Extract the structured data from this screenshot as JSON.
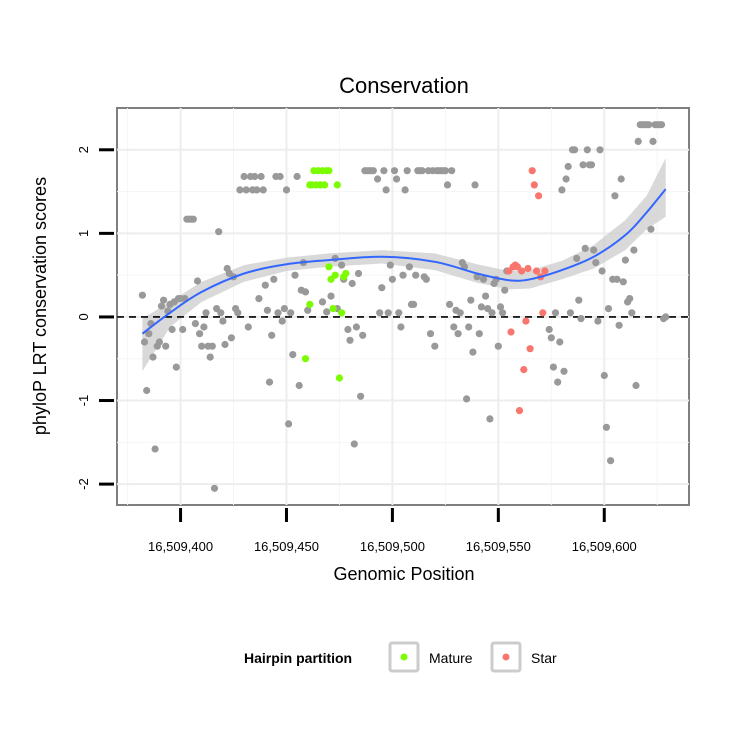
{
  "chart_data": {
    "type": "scatter",
    "title": "Conservation",
    "xlabel": "Genomic Position",
    "ylabel": "phyloP LRT conservation scores",
    "xlim": [
      16509370,
      16509640
    ],
    "ylim": [
      -2.25,
      2.5
    ],
    "x_ticks": [
      16509400,
      16509450,
      16509500,
      16509550,
      16509600
    ],
    "x_tick_labels": [
      "16,509,400",
      "16,509,450",
      "16,509,500",
      "16,509,550",
      "16,509,600"
    ],
    "y_ticks": [
      -2,
      -1,
      0,
      1,
      2
    ],
    "y_tick_labels": [
      "-2",
      "-1",
      "0",
      "1",
      "2"
    ],
    "grid": true,
    "reference_line": {
      "y": 0,
      "style": "dashed"
    },
    "legend": {
      "title": "Hairpin partition",
      "position": "bottom",
      "entries": [
        {
          "label": "Mature",
          "color": "#7CFC00"
        },
        {
          "label": "Star",
          "color": "#F8766D"
        }
      ]
    },
    "colors": {
      "unassigned": "#999999",
      "Mature": "#7CFC00",
      "Star": "#F8766D",
      "smooth_line": "#3366FF",
      "confidence_band": "#CCCCCC"
    },
    "series": [
      {
        "category": "unassigned",
        "points": [
          [
            16509382,
            0.26
          ],
          [
            16509383,
            -0.3
          ],
          [
            16509384,
            -0.88
          ],
          [
            16509385,
            -0.2
          ],
          [
            16509386,
            -0.08
          ],
          [
            16509387,
            -0.48
          ],
          [
            16509388,
            -1.58
          ],
          [
            16509389,
            -0.35
          ],
          [
            16509390,
            -0.3
          ],
          [
            16509391,
            0.13
          ],
          [
            16509392,
            0.2
          ],
          [
            16509393,
            -0.35
          ],
          [
            16509394,
            0.07
          ],
          [
            16509395,
            0.15
          ],
          [
            16509396,
            -0.15
          ],
          [
            16509397,
            0.18
          ],
          [
            16509398,
            -0.6
          ],
          [
            16509399,
            0.22
          ],
          [
            16509400,
            0.22
          ],
          [
            16509401,
            -0.15
          ],
          [
            16509402,
            0.22
          ],
          [
            16509403,
            1.17
          ],
          [
            16509404,
            1.17
          ],
          [
            16509405,
            1.17
          ],
          [
            16509406,
            1.17
          ],
          [
            16509407,
            -0.08
          ],
          [
            16509408,
            0.43
          ],
          [
            16509409,
            -0.2
          ],
          [
            16509410,
            -0.35
          ],
          [
            16509411,
            -0.12
          ],
          [
            16509412,
            0.05
          ],
          [
            16509413,
            -0.35
          ],
          [
            16509414,
            -0.48
          ],
          [
            16509415,
            -0.35
          ],
          [
            16509416,
            -2.05
          ],
          [
            16509417,
            0.1
          ],
          [
            16509418,
            1.02
          ],
          [
            16509419,
            0.05
          ],
          [
            16509420,
            -0.05
          ],
          [
            16509421,
            -0.33
          ],
          [
            16509422,
            0.58
          ],
          [
            16509423,
            0.52
          ],
          [
            16509424,
            -0.25
          ],
          [
            16509425,
            0.48
          ],
          [
            16509426,
            0.1
          ],
          [
            16509427,
            0.05
          ],
          [
            16509428,
            1.52
          ],
          [
            16509430,
            1.68
          ],
          [
            16509431,
            1.52
          ],
          [
            16509432,
            -0.12
          ],
          [
            16509433,
            1.68
          ],
          [
            16509434,
            1.52
          ],
          [
            16509435,
            1.68
          ],
          [
            16509436,
            1.52
          ],
          [
            16509437,
            0.22
          ],
          [
            16509438,
            1.68
          ],
          [
            16509439,
            1.52
          ],
          [
            16509440,
            0.38
          ],
          [
            16509441,
            0.08
          ],
          [
            16509442,
            -0.78
          ],
          [
            16509443,
            -0.22
          ],
          [
            16509444,
            0.45
          ],
          [
            16509445,
            1.68
          ],
          [
            16509446,
            0.05
          ],
          [
            16509447,
            1.68
          ],
          [
            16509448,
            -0.05
          ],
          [
            16509449,
            0.1
          ],
          [
            16509450,
            1.52
          ],
          [
            16509451,
            -1.28
          ],
          [
            16509452,
            0.05
          ],
          [
            16509453,
            -0.45
          ],
          [
            16509454,
            0.5
          ],
          [
            16509455,
            1.68
          ],
          [
            16509456,
            -0.82
          ],
          [
            16509457,
            0.32
          ],
          [
            16509458,
            0.65
          ],
          [
            16509459,
            0.3
          ],
          [
            16509460,
            0.08
          ],
          [
            16509467,
            0.18
          ],
          [
            16509469,
            0.06
          ],
          [
            16509471,
            0.25
          ],
          [
            16509473,
            0.7
          ],
          [
            16509474,
            0.1
          ],
          [
            16509476,
            0.62
          ],
          [
            16509477,
            0.45
          ],
          [
            16509479,
            -0.15
          ],
          [
            16509480,
            -0.28
          ],
          [
            16509481,
            0.4
          ],
          [
            16509482,
            -1.52
          ],
          [
            16509483,
            -0.12
          ],
          [
            16509484,
            0.52
          ],
          [
            16509485,
            -0.95
          ],
          [
            16509486,
            -0.22
          ],
          [
            16509487,
            1.75
          ],
          [
            16509488,
            1.75
          ],
          [
            16509489,
            1.75
          ],
          [
            16509490,
            1.75
          ],
          [
            16509491,
            1.75
          ],
          [
            16509493,
            1.65
          ],
          [
            16509494,
            0.05
          ],
          [
            16509495,
            0.35
          ],
          [
            16509496,
            1.75
          ],
          [
            16509497,
            1.52
          ],
          [
            16509498,
            0.05
          ],
          [
            16509499,
            0.62
          ],
          [
            16509500,
            0.45
          ],
          [
            16509501,
            1.75
          ],
          [
            16509502,
            1.65
          ],
          [
            16509503,
            0.05
          ],
          [
            16509504,
            -0.12
          ],
          [
            16509505,
            0.5
          ],
          [
            16509506,
            1.52
          ],
          [
            16509507,
            1.75
          ],
          [
            16509508,
            0.6
          ],
          [
            16509509,
            0.15
          ],
          [
            16509510,
            0.15
          ],
          [
            16509511,
            0.5
          ],
          [
            16509512,
            1.75
          ],
          [
            16509513,
            1.75
          ],
          [
            16509514,
            1.75
          ],
          [
            16509515,
            0.48
          ],
          [
            16509516,
            0.45
          ],
          [
            16509517,
            1.75
          ],
          [
            16509518,
            -0.2
          ],
          [
            16509519,
            1.75
          ],
          [
            16509520,
            -0.35
          ],
          [
            16509521,
            1.75
          ],
          [
            16509522,
            1.75
          ],
          [
            16509523,
            1.75
          ],
          [
            16509524,
            1.75
          ],
          [
            16509525,
            1.75
          ],
          [
            16509526,
            1.58
          ],
          [
            16509527,
            0.15
          ],
          [
            16509528,
            1.75
          ],
          [
            16509529,
            -0.12
          ],
          [
            16509530,
            0.08
          ],
          [
            16509531,
            -0.2
          ],
          [
            16509532,
            0.05
          ],
          [
            16509533,
            0.65
          ],
          [
            16509534,
            0.6
          ],
          [
            16509535,
            -0.98
          ],
          [
            16509536,
            -0.12
          ],
          [
            16509537,
            0.2
          ],
          [
            16509538,
            -0.42
          ],
          [
            16509539,
            1.58
          ],
          [
            16509540,
            0.48
          ],
          [
            16509541,
            -0.2
          ],
          [
            16509542,
            0.12
          ],
          [
            16509543,
            0.45
          ],
          [
            16509544,
            0.25
          ],
          [
            16509545,
            0.1
          ],
          [
            16509546,
            -1.22
          ],
          [
            16509547,
            0.05
          ],
          [
            16509548,
            0.4
          ],
          [
            16509549,
            0.45
          ],
          [
            16509550,
            -0.35
          ],
          [
            16509551,
            0.12
          ],
          [
            16509552,
            0.05
          ],
          [
            16509553,
            0.32
          ],
          [
            16509554,
            0.55
          ],
          [
            16509574,
            -0.15
          ],
          [
            16509575,
            -0.25
          ],
          [
            16509576,
            -0.6
          ],
          [
            16509577,
            0.05
          ],
          [
            16509578,
            -0.78
          ],
          [
            16509579,
            -0.3
          ],
          [
            16509580,
            1.52
          ],
          [
            16509581,
            -0.65
          ],
          [
            16509582,
            1.65
          ],
          [
            16509583,
            1.8
          ],
          [
            16509584,
            0.05
          ],
          [
            16509585,
            2.0
          ],
          [
            16509586,
            2.0
          ],
          [
            16509587,
            0.7
          ],
          [
            16509588,
            0.2
          ],
          [
            16509589,
            -0.02
          ],
          [
            16509590,
            1.82
          ],
          [
            16509591,
            0.82
          ],
          [
            16509592,
            2.0
          ],
          [
            16509593,
            1.82
          ],
          [
            16509594,
            1.82
          ],
          [
            16509595,
            0.8
          ],
          [
            16509596,
            0.65
          ],
          [
            16509597,
            -0.05
          ],
          [
            16509598,
            2.0
          ],
          [
            16509599,
            0.55
          ],
          [
            16509600,
            -0.7
          ],
          [
            16509601,
            -1.32
          ],
          [
            16509602,
            0.1
          ],
          [
            16509603,
            -1.72
          ],
          [
            16509604,
            0.45
          ],
          [
            16509605,
            1.45
          ],
          [
            16509606,
            0.45
          ],
          [
            16509607,
            -0.1
          ],
          [
            16509608,
            1.65
          ],
          [
            16509609,
            0.42
          ],
          [
            16509610,
            0.68
          ],
          [
            16509611,
            0.18
          ],
          [
            16509612,
            0.22
          ],
          [
            16509613,
            0.05
          ],
          [
            16509614,
            0.8
          ],
          [
            16509615,
            -0.82
          ],
          [
            16509616,
            2.1
          ],
          [
            16509617,
            2.3
          ],
          [
            16509618,
            2.3
          ],
          [
            16509619,
            2.3
          ],
          [
            16509620,
            2.3
          ],
          [
            16509621,
            2.3
          ],
          [
            16509622,
            1.05
          ],
          [
            16509623,
            2.1
          ],
          [
            16509624,
            2.3
          ],
          [
            16509625,
            2.3
          ],
          [
            16509626,
            2.3
          ],
          [
            16509627,
            2.3
          ],
          [
            16509628,
            -0.02
          ],
          [
            16509629,
            0.0
          ]
        ]
      },
      {
        "category": "Mature",
        "points": [
          [
            16509461,
            1.58
          ],
          [
            16509462,
            1.58
          ],
          [
            16509463,
            1.75
          ],
          [
            16509464,
            1.58
          ],
          [
            16509465,
            1.75
          ],
          [
            16509466,
            1.58
          ],
          [
            16509467,
            1.75
          ],
          [
            16509468,
            1.58
          ],
          [
            16509469,
            1.75
          ],
          [
            16509470,
            1.75
          ],
          [
            16509461,
            0.15
          ],
          [
            16509459,
            -0.5
          ],
          [
            16509470,
            0.6
          ],
          [
            16509471,
            0.45
          ],
          [
            16509472,
            0.1
          ],
          [
            16509473,
            0.5
          ],
          [
            16509474,
            1.58
          ],
          [
            16509475,
            -0.73
          ],
          [
            16509476,
            0.05
          ],
          [
            16509477,
            0.48
          ],
          [
            16509478,
            0.52
          ]
        ]
      },
      {
        "category": "Star",
        "points": [
          [
            16509555,
            0.55
          ],
          [
            16509556,
            -0.18
          ],
          [
            16509557,
            0.6
          ],
          [
            16509558,
            0.62
          ],
          [
            16509559,
            0.6
          ],
          [
            16509560,
            -1.12
          ],
          [
            16509561,
            0.55
          ],
          [
            16509562,
            -0.63
          ],
          [
            16509563,
            -0.05
          ],
          [
            16509564,
            0.58
          ],
          [
            16509565,
            -0.38
          ],
          [
            16509566,
            1.75
          ],
          [
            16509567,
            1.58
          ],
          [
            16509568,
            0.55
          ],
          [
            16509569,
            1.45
          ],
          [
            16509570,
            0.48
          ],
          [
            16509571,
            0.05
          ],
          [
            16509572,
            0.55
          ]
        ]
      }
    ],
    "smooth_fit": {
      "x": [
        16509382,
        16509395,
        16509410,
        16509430,
        16509450,
        16509470,
        16509495,
        16509520,
        16509540,
        16509555,
        16509565,
        16509580,
        16509595,
        16509610,
        16509620,
        16509629
      ],
      "y": [
        -0.2,
        0.05,
        0.3,
        0.52,
        0.63,
        0.68,
        0.72,
        0.66,
        0.52,
        0.44,
        0.45,
        0.56,
        0.72,
        0.98,
        1.25,
        1.53
      ],
      "ci_upper": [
        -0.02,
        0.18,
        0.42,
        0.62,
        0.71,
        0.76,
        0.8,
        0.76,
        0.63,
        0.55,
        0.56,
        0.67,
        0.86,
        1.16,
        1.45,
        1.9
      ],
      "ci_lower": [
        -0.65,
        -0.12,
        0.18,
        0.42,
        0.55,
        0.6,
        0.64,
        0.56,
        0.41,
        0.33,
        0.34,
        0.45,
        0.58,
        0.8,
        1.05,
        1.2
      ]
    }
  }
}
